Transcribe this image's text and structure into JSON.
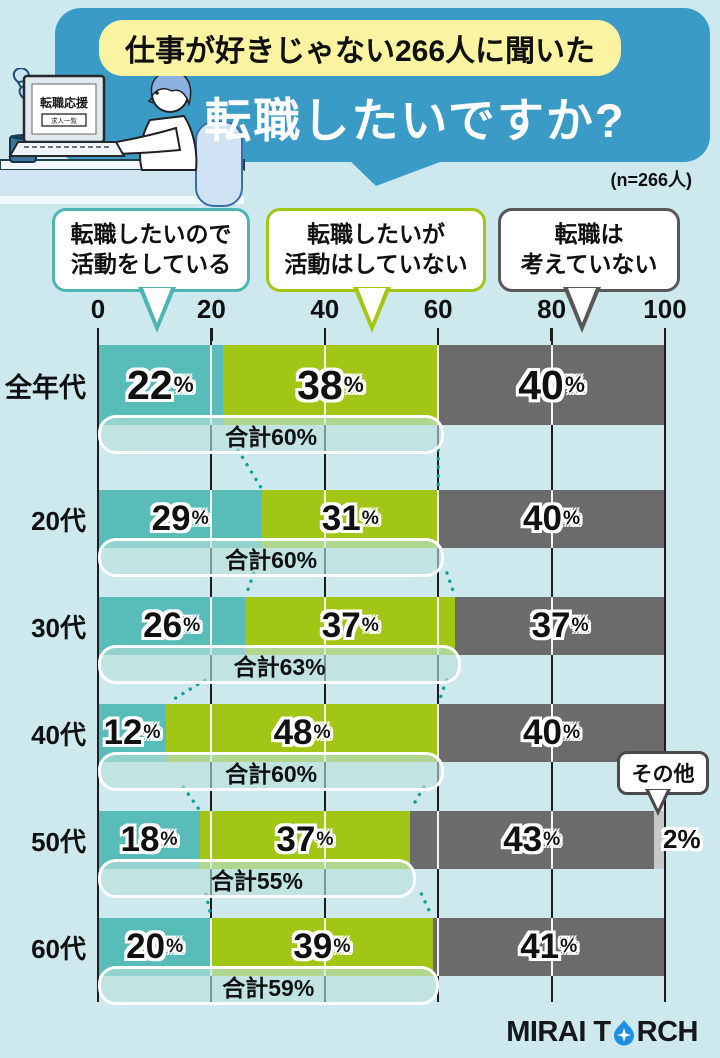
{
  "header": {
    "badge": "仕事が好きじゃない266人に聞いた",
    "title": "転職したいですか?",
    "sample_note": "(n=266人)",
    "bubble_color": "#3b9bc7",
    "badge_color": "#faf4a2",
    "illustration": {
      "screen_title": "転職応援",
      "screen_button": "求人一覧"
    }
  },
  "legend": {
    "items": [
      {
        "line1": "転職したいので",
        "line2": "活動をしている",
        "color": "#4db5b4"
      },
      {
        "line1": "転職したいが",
        "line2": "活動はしていない",
        "color": "#a3c614"
      },
      {
        "line1": "転職は",
        "line2": "考えていない",
        "color": "#595757"
      }
    ]
  },
  "chart_data": {
    "type": "bar",
    "stacked": true,
    "orientation": "horizontal",
    "x_ticks": [
      0,
      20,
      40,
      60,
      80,
      100
    ],
    "x_range": [
      0,
      100
    ],
    "grid": true,
    "legend_position": "top",
    "categories": [
      "全年代",
      "20代",
      "30代",
      "40代",
      "50代",
      "60代"
    ],
    "series": [
      {
        "name": "転職したいので活動をしている",
        "color": "#58bcb8",
        "values": [
          22,
          29,
          26,
          12,
          18,
          20
        ]
      },
      {
        "name": "転職したいが活動はしていない",
        "color": "#a2c616",
        "values": [
          38,
          31,
          37,
          48,
          37,
          39
        ]
      },
      {
        "name": "転職は考えていない",
        "color": "#6c6b6b",
        "values": [
          40,
          40,
          37,
          40,
          43,
          41
        ]
      },
      {
        "name": "その他",
        "color": "#c6c9c8",
        "values": [
          0,
          0,
          0,
          0,
          2,
          0
        ]
      }
    ],
    "totals": [
      60,
      60,
      63,
      60,
      55,
      59
    ],
    "total_labels": [
      "合計60%",
      "合計60%",
      "合計63%",
      "合計60%",
      "合計55%",
      "合計59%"
    ],
    "annotations": {
      "other_label": "その他",
      "other_value_label": "2%"
    }
  },
  "footer": {
    "logo_full": "MIRAI TORCH",
    "logo_part1": "MIRAI T",
    "logo_part2": "RCH"
  }
}
